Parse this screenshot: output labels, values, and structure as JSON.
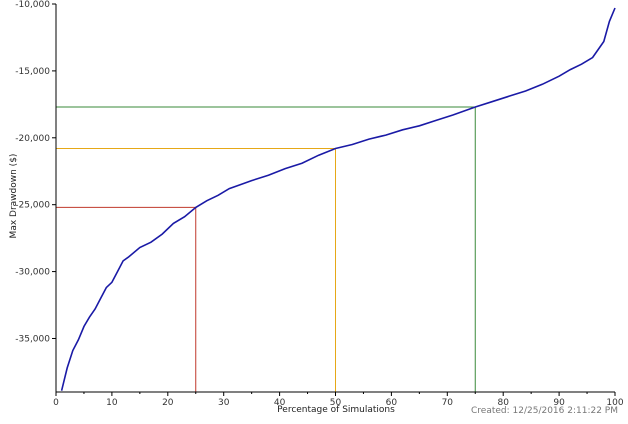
{
  "footer": {
    "created": "Created: 12/25/2016 2:11:22 PM"
  },
  "colors": {
    "line": "#1a1aa6",
    "axis": "#000000",
    "ref_25": "#c0392b",
    "ref_50": "#e6a817",
    "ref_75": "#3a8a3a"
  },
  "chart_data": {
    "type": "line",
    "title": "",
    "xlabel": "Percentage of Simulations",
    "ylabel": "Max Drawdown ($)",
    "xlim": [
      0,
      100
    ],
    "ylim": [
      -39000,
      -10000
    ],
    "x_ticks": [
      0,
      10,
      20,
      30,
      40,
      50,
      60,
      70,
      80,
      90,
      100
    ],
    "y_ticks": [
      -35000,
      -30000,
      -25000,
      -20000,
      -15000,
      -10000
    ],
    "x_tick_labels": [
      "0",
      "10",
      "20",
      "30",
      "40",
      "50",
      "60",
      "70",
      "80",
      "90",
      "100"
    ],
    "y_tick_labels": [
      "-35,000",
      "-30,000",
      "-25,000",
      "-20,000",
      "-15,000",
      "-10,000"
    ],
    "grid": false,
    "series": [
      {
        "x": [
          1,
          2,
          3,
          4,
          5,
          6,
          7,
          8,
          9,
          10,
          11,
          12,
          13,
          15,
          17,
          19,
          21,
          23,
          25,
          27,
          29,
          31,
          33,
          35,
          38,
          41,
          44,
          47,
          50,
          53,
          56,
          59,
          62,
          65,
          68,
          71,
          75,
          78,
          81,
          84,
          87,
          90,
          92,
          94,
          96,
          97,
          98,
          99,
          100
        ],
        "y": [
          -38900,
          -37200,
          -35900,
          -35100,
          -34100,
          -33400,
          -32800,
          -32000,
          -31200,
          -30800,
          -30000,
          -29200,
          -28900,
          -28200,
          -27800,
          -27200,
          -26400,
          -25900,
          -25200,
          -24700,
          -24300,
          -23800,
          -23500,
          -23200,
          -22800,
          -22300,
          -21900,
          -21300,
          -20800,
          -20500,
          -20100,
          -19800,
          -19400,
          -19100,
          -18700,
          -18300,
          -17700,
          -17300,
          -16900,
          -16500,
          -16000,
          -15400,
          -14900,
          -14500,
          -14000,
          -13400,
          -12800,
          -11300,
          -10300
        ]
      }
    ],
    "reference_lines": [
      {
        "x": 25,
        "y": -25200,
        "color": "#c0392b"
      },
      {
        "x": 50,
        "y": -20800,
        "color": "#e6a817"
      },
      {
        "x": 75,
        "y": -17700,
        "color": "#3a8a3a"
      }
    ]
  }
}
